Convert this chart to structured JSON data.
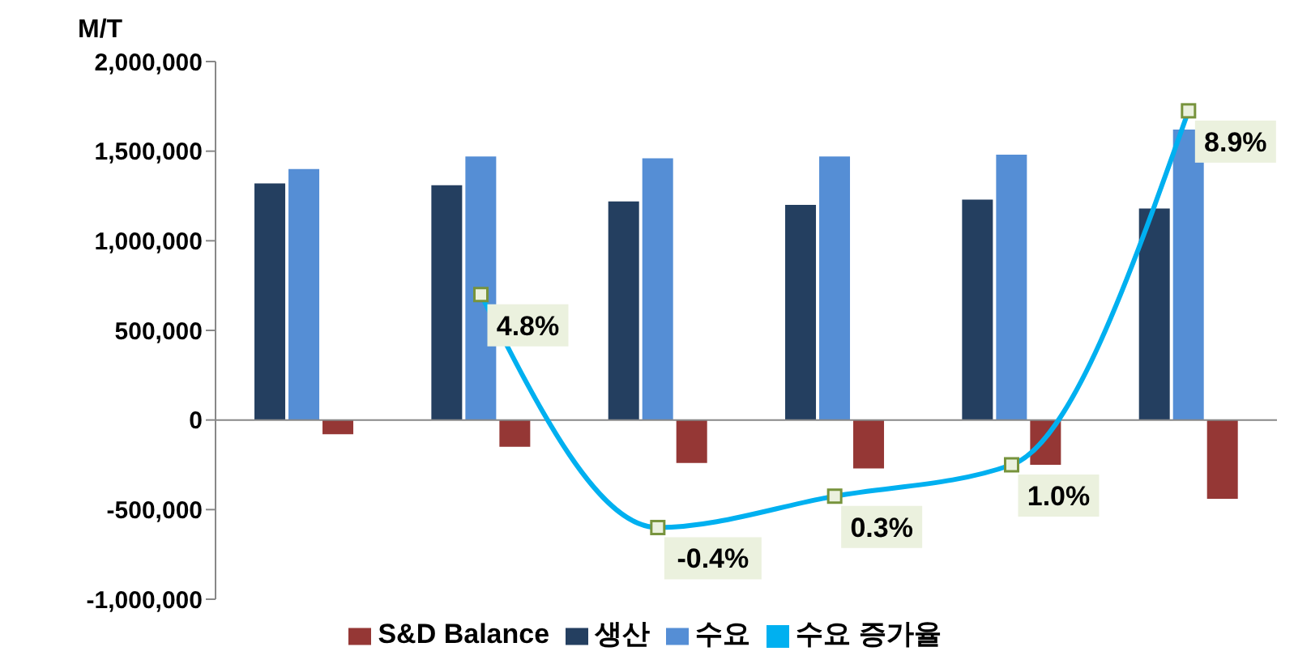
{
  "chart_data": {
    "type": "bar",
    "ylabel": "M/T",
    "categories": [
      null,
      null,
      null,
      null,
      null,
      null
    ],
    "series": [
      {
        "name": "생산",
        "color": "#243f60",
        "values": [
          1320000,
          1310000,
          1220000,
          1200000,
          1230000,
          1180000
        ]
      },
      {
        "name": "수요",
        "color": "#558ed5",
        "values": [
          1400000,
          1470000,
          1460000,
          1470000,
          1480000,
          1620000
        ]
      },
      {
        "name": "S&D Balance",
        "color": "#953735",
        "values": [
          -80000,
          -150000,
          -240000,
          -270000,
          -250000,
          -440000
        ]
      },
      {
        "name": "수요 증가율",
        "type": "line",
        "axis": "y2",
        "color": "#00b0f0",
        "values": [
          null,
          4.8,
          -0.4,
          0.3,
          1.0,
          8.9
        ],
        "value_labels": [
          null,
          "4.8%",
          "-0.4%",
          "0.3%",
          "1.0%",
          "8.9%"
        ]
      }
    ],
    "ylim": [
      -1000000,
      2000000
    ],
    "yticks": [
      {
        "value": -1000000,
        "label": "-1,000,000"
      },
      {
        "value": -500000,
        "label": "-500,000"
      },
      0,
      {
        "value": 500000,
        "label": "500,000"
      },
      {
        "value": 1000000,
        "label": "1,000,000"
      },
      {
        "value": 1500000,
        "label": "1,500,000"
      },
      {
        "value": 2000000,
        "label": "2,000,000"
      }
    ],
    "ref_lines": [
      {
        "axis": "y",
        "value": 0,
        "color": "#888888"
      }
    ],
    "y2lim": [
      -2,
      10
    ],
    "tick_labels": "y",
    "legend": "bottom",
    "marker": "square"
  }
}
